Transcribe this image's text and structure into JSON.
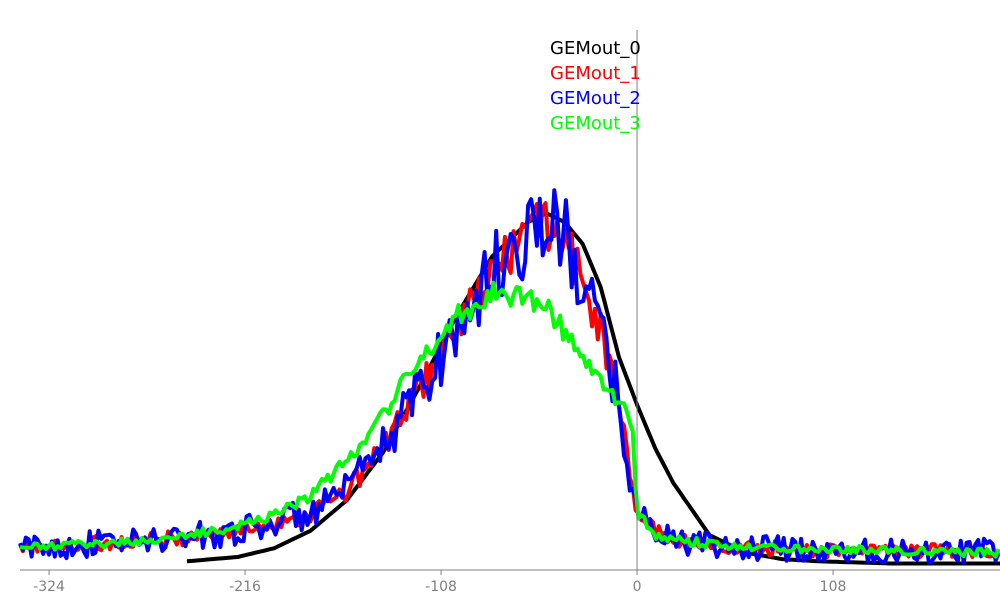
{
  "chart_data": {
    "type": "line",
    "title": "",
    "xlabel": "",
    "ylabel": "",
    "xlim": [
      -340,
      200
    ],
    "ylim": [
      0,
      100
    ],
    "x_ticks": [
      -324,
      -216,
      -108,
      0,
      108
    ],
    "x_tick_labels": [
      "-324",
      "-216",
      "-108",
      "0",
      "108"
    ],
    "vertical_line_at_x": 0,
    "legend_position": "top-center",
    "grid": false,
    "y_axis_visible": false,
    "series": [
      {
        "name": "GEMout_0",
        "color": "#000000",
        "noise": 0,
        "x": [
          -248,
          -220,
          -200,
          -180,
          -160,
          -140,
          -120,
          -100,
          -80,
          -60,
          -50,
          -40,
          -30,
          -20,
          -10,
          0,
          10,
          20,
          30,
          40,
          60,
          80,
          100,
          140,
          180,
          200
        ],
        "y": [
          2,
          3,
          5,
          9,
          16,
          27,
          42,
          58,
          72,
          80,
          82,
          80,
          75,
          65,
          49,
          38,
          28,
          20,
          14,
          8,
          4,
          2.5,
          2,
          1.5,
          1.5,
          1.5
        ]
      },
      {
        "name": "GEMout_1",
        "color": "#ff0000",
        "noise": 3.5,
        "x": [
          -340,
          -300,
          -260,
          -220,
          -200,
          -180,
          -160,
          -140,
          -120,
          -100,
          -80,
          -60,
          -50,
          -40,
          -30,
          -20,
          -10,
          -5,
          0,
          10,
          20,
          40,
          60,
          80,
          100,
          140,
          180,
          200
        ],
        "y": [
          5,
          6,
          7,
          9,
          11,
          13,
          18,
          28,
          42,
          55,
          68,
          78,
          80,
          76,
          66,
          55,
          38,
          25,
          13,
          9,
          7,
          5.5,
          5,
          5,
          4.5,
          4.5,
          4.5,
          4.5
        ]
      },
      {
        "name": "GEMout_2",
        "color": "#0000ff",
        "noise": 6,
        "x": [
          -340,
          -300,
          -260,
          -220,
          -200,
          -180,
          -160,
          -140,
          -120,
          -100,
          -80,
          -60,
          -50,
          -40,
          -30,
          -20,
          -10,
          -5,
          0,
          10,
          20,
          40,
          60,
          80,
          100,
          140,
          180,
          200
        ],
        "y": [
          5,
          6,
          7,
          9,
          11,
          13,
          18,
          28,
          42,
          55,
          68,
          78,
          80,
          76,
          66,
          55,
          38,
          25,
          13,
          9,
          7,
          5.5,
          5,
          5,
          4.5,
          4.5,
          4.5,
          4.5
        ]
      },
      {
        "name": "GEMout_3",
        "color": "#00ff00",
        "noise": 2,
        "x": [
          -340,
          -300,
          -260,
          -220,
          -200,
          -180,
          -160,
          -140,
          -120,
          -100,
          -80,
          -60,
          -50,
          -40,
          -30,
          -20,
          -10,
          -3,
          0,
          10,
          20,
          40,
          60,
          80,
          100,
          140,
          180,
          200
        ],
        "y": [
          5,
          6,
          7,
          10,
          13,
          17,
          25,
          36,
          48,
          58,
          64,
          63,
          60,
          55,
          49,
          43,
          38,
          35,
          13,
          8,
          7,
          6,
          5.5,
          5,
          5,
          4.5,
          4,
          4
        ]
      }
    ]
  }
}
